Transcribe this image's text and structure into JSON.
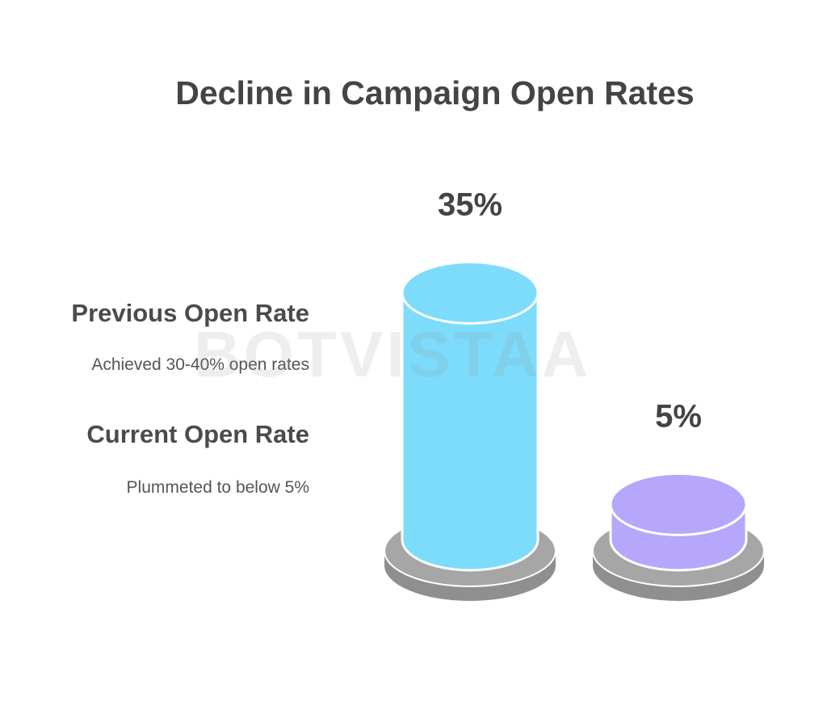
{
  "chart_data": {
    "type": "bar",
    "title": "Decline in Campaign Open Rates",
    "categories": [
      "Previous Open Rate",
      "Current Open Rate"
    ],
    "values": [
      35,
      5
    ],
    "value_labels": [
      "35%",
      "5%"
    ],
    "unit": "%",
    "colors": [
      "#7ddcfb",
      "#b6a7fc"
    ],
    "legend": [
      {
        "title": "Previous Open Rate",
        "description": "Achieved 30-40% open rates"
      },
      {
        "title": "Current Open Rate",
        "description": "Plummeted to below 5%"
      }
    ],
    "legend_placement": "left",
    "grid": false
  },
  "watermark": "BOTVISTAA"
}
